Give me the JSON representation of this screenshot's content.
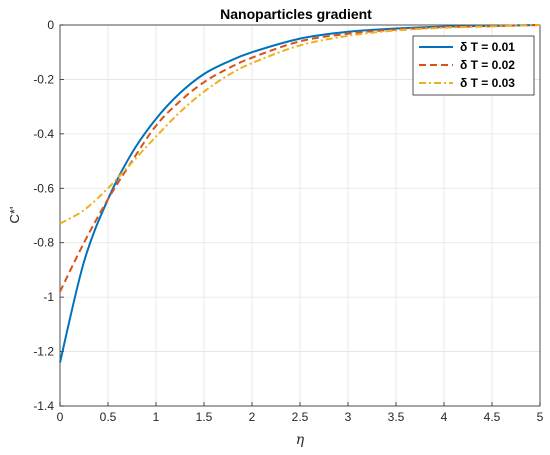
{
  "chart_data": {
    "type": "line",
    "title": "Nanoparticles gradient",
    "xlabel": "η",
    "ylabel": "C*'",
    "xlim": [
      0,
      5
    ],
    "ylim": [
      -1.4,
      0
    ],
    "x_ticks": [
      0,
      0.5,
      1,
      1.5,
      2,
      2.5,
      3,
      3.5,
      4,
      4.5,
      5
    ],
    "x_tick_labels": [
      "0",
      "0.5",
      "1",
      "1.5",
      "2",
      "2.5",
      "3",
      "3.5",
      "4",
      "4.5",
      "5"
    ],
    "y_ticks": [
      0,
      -0.2,
      -0.4,
      -0.6,
      -0.8,
      -1,
      -1.2,
      -1.4
    ],
    "y_tick_labels": [
      "0",
      "-0.2",
      "-0.4",
      "-0.6",
      "-0.8",
      "-1",
      "-1.2",
      "-1.4"
    ],
    "grid": true,
    "legend_position": "top-right",
    "x": [
      0,
      0.25,
      0.5,
      0.75,
      1,
      1.25,
      1.5,
      1.75,
      2,
      2.5,
      3,
      3.5,
      4,
      4.5,
      5
    ],
    "series": [
      {
        "name": "δ T = 0.01",
        "color": "#0072BD",
        "style": "solid",
        "values": [
          -1.24,
          -0.87,
          -0.64,
          -0.47,
          -0.345,
          -0.25,
          -0.18,
          -0.135,
          -0.1,
          -0.05,
          -0.025,
          -0.013,
          -0.006,
          -0.003,
          0
        ]
      },
      {
        "name": "δ T = 0.02",
        "color": "#D95319",
        "style": "dashed",
        "values": [
          -0.98,
          -0.8,
          -0.64,
          -0.5,
          -0.37,
          -0.28,
          -0.21,
          -0.16,
          -0.12,
          -0.06,
          -0.032,
          -0.017,
          -0.008,
          -0.004,
          0
        ]
      },
      {
        "name": "δ T = 0.03",
        "color": "#EDB120",
        "style": "dashdot",
        "values": [
          -0.73,
          -0.68,
          -0.6,
          -0.505,
          -0.41,
          -0.32,
          -0.245,
          -0.185,
          -0.14,
          -0.075,
          -0.04,
          -0.02,
          -0.01,
          -0.005,
          0
        ]
      }
    ]
  }
}
